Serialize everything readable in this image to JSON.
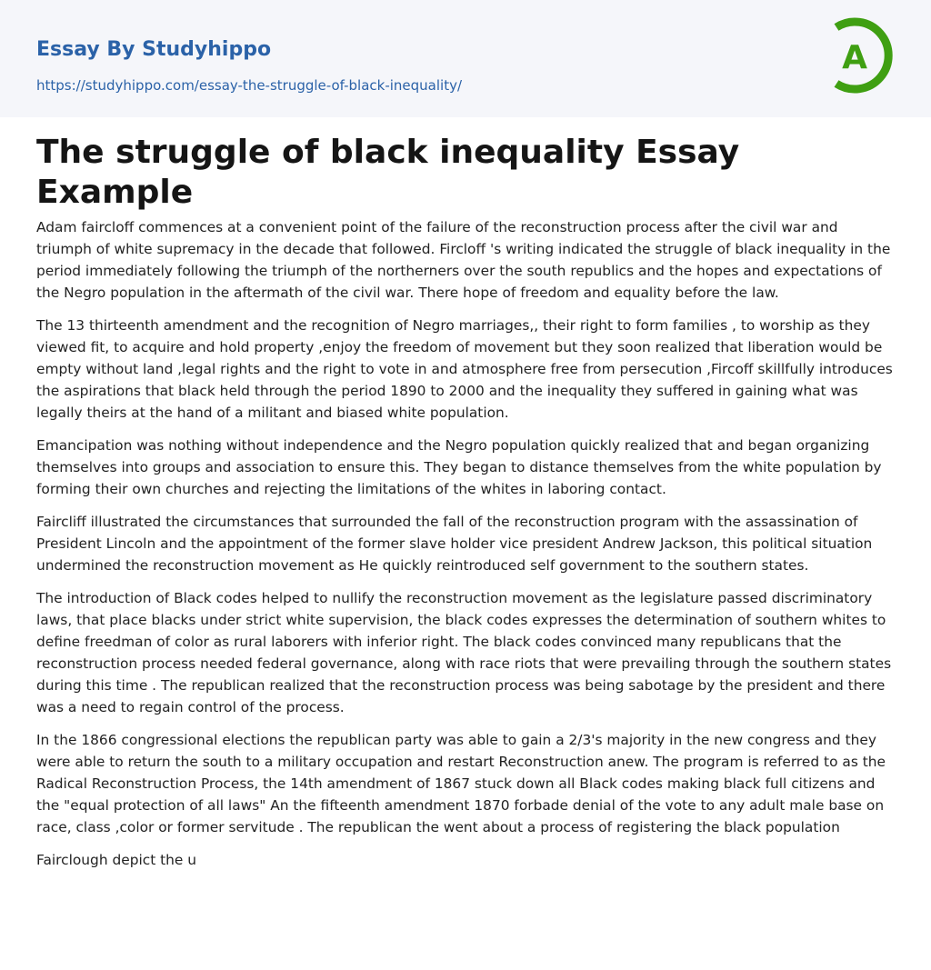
{
  "header": {
    "brand": "Essay By Studyhippo",
    "url": "https://studyhippo.com/essay-the-struggle-of-black-inequality/",
    "logo_letter": "A",
    "logo_color": "#3f9f12",
    "brand_color": "#2b62a8"
  },
  "article": {
    "title": "The struggle of black inequality Essay Example",
    "paragraphs": [
      "Adam faircloff commences at a convenient point of the failure of the reconstruction process after the civil war and triumph of white supremacy in the decade that followed. Fircloff 's writing indicated the struggle of black inequality in the period immediately following the triumph of the northerners over the south republics and the hopes and expectations of the Negro population in the aftermath of the civil war. There hope of freedom and equality before the law.",
      "The 13 thirteenth amendment and the recognition of Negro marriages,, their right to form families , to worship as they viewed fit, to acquire and hold property ,enjoy the freedom of movement but they soon realized that liberation would be empty without land ,legal rights and the right to vote in and atmosphere free from persecution ,Fircoff skillfully introduces the aspirations that black held through the period 1890 to 2000 and the inequality they suffered in gaining what was legally theirs at the hand of a militant and biased white population.",
      "Emancipation was nothing without independence and the Negro population quickly realized that and began organizing themselves into groups and association to ensure this. They began to distance themselves from the white population by forming their own churches and rejecting the limitations of the whites in laboring contact.",
      "Faircliff illustrated the circumstances that surrounded the fall of the reconstruction program with the assassination of President Lincoln and the appointment of the former slave holder vice president Andrew Jackson, this political situation undermined the reconstruction movement as He quickly reintroduced self government to the southern states.",
      "The introduction of Black codes helped to nullify the reconstruction movement as the legislature passed discriminatory laws, that place blacks under strict white supervision, the black codes expresses the determination of southern whites to define freedman of color as rural laborers with inferior right. The black codes convinced many republicans that the reconstruction process needed federal governance, along with race riots that were prevailing through the southern states during this time . The republican realized that the reconstruction process was being sabotage by the president and there was a need to regain control of the process.",
      "In the 1866 congressional elections the republican party was able to gain a 2/3's majority in the new congress and they were able to return the south to a military occupation and restart Reconstruction anew. The program is referred to as the Radical Reconstruction Process, the 14th amendment of 1867 stuck down all Black codes making black full citizens and the \"equal protection of all laws\" An the fifteenth amendment 1870 forbade denial of the vote to any adult male base on race, class ,color or former servitude . The republican the went about a process of registering the black population",
      "Fairclough depict the u"
    ]
  }
}
